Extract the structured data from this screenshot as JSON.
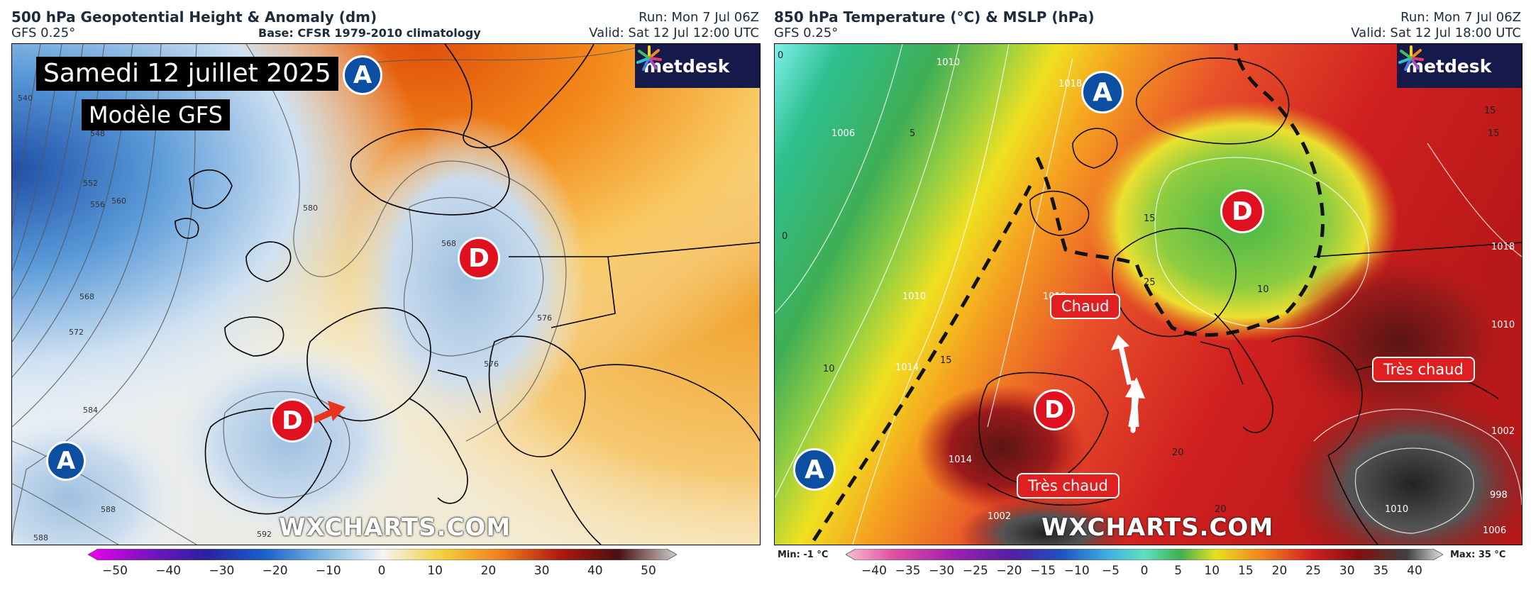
{
  "left_panel": {
    "title": "500 hPa Geopotential Height & Anomaly (dm)",
    "model": "GFS 0.25°",
    "base": "Base: CFSR 1979-2010 climatology",
    "run": "Run: Mon 7 Jul 06Z",
    "valid": "Valid: Sat 12 Jul 12:00 UTC",
    "headline": "Samedi 12 juillet 2025",
    "model_label": "Modèle GFS",
    "logo_text": "metdesk",
    "watermark": "WXCHARTS.COM",
    "high_symbol": "A",
    "low_symbol": "D",
    "contour_labels": [
      "540",
      "548",
      "552",
      "556",
      "560",
      "568",
      "572",
      "580",
      "584",
      "588",
      "592",
      "568",
      "576",
      "576",
      "588"
    ],
    "colorbar_ticks": [
      "−50",
      "−40",
      "−30",
      "−20",
      "−10",
      "0",
      "10",
      "20",
      "30",
      "40",
      "50"
    ],
    "colors": {
      "cold": "#1f5fb5",
      "neutral": "#f4f4f4",
      "warm": "#f0a020",
      "hot": "#e05a10"
    }
  },
  "right_panel": {
    "title": "850 hPa Temperature (°C) & MSLP (hPa)",
    "model": "GFS 0.25°",
    "run": "Run: Mon 7 Jul 06Z",
    "valid": "Valid: Sat 12 Jul 18:00 UTC",
    "logo_text": "metdesk",
    "watermark": "WXCHARTS.COM",
    "high_symbol": "A",
    "low_symbol": "D",
    "label_hot": "Chaud",
    "label_very_hot_1": "Très chaud",
    "label_very_hot_2": "Très chaud",
    "min_label": "Min: -1 °C",
    "max_label": "Max: 35 °C",
    "contour_labels": [
      "1010",
      "1006",
      "1018",
      "1010",
      "1014",
      "1014",
      "1010",
      "1018",
      "1010",
      "1002",
      "998",
      "1006",
      "1010",
      "1002",
      "5",
      "0",
      "0",
      "10",
      "15",
      "15",
      "20",
      "25",
      "15",
      "10",
      "15",
      "20"
    ],
    "colorbar_ticks": [
      "−40",
      "−35",
      "−30",
      "−25",
      "−20",
      "−15",
      "−10",
      "−5",
      "0",
      "5",
      "10",
      "15",
      "20",
      "25",
      "30",
      "35",
      "40"
    ],
    "colors": {
      "cold": "#3ab870",
      "cool": "#f0e020",
      "warm": "#f08020",
      "hot": "#d02020",
      "very_hot": "#5a1010"
    }
  }
}
